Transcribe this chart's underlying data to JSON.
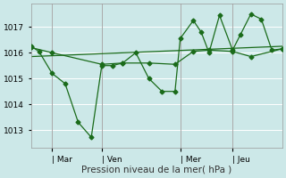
{
  "xlabel": "Pression niveau de la mer( hPa )",
  "bg_color": "#cce8e8",
  "grid_color": "#ffffff",
  "line_color": "#1a6b1a",
  "ylim": [
    1012.3,
    1017.9
  ],
  "yticks": [
    1013,
    1014,
    1015,
    1016,
    1017
  ],
  "xtick_labels": [
    "| Mar",
    "| Ven",
    "| Mer",
    "| Jeu"
  ],
  "xtick_positions": [
    8,
    27,
    57,
    77
  ],
  "total_points": 96,
  "xlim": [
    0,
    96
  ],
  "series_jagged_x": [
    0,
    3,
    8,
    13,
    18,
    23,
    27,
    31,
    35,
    40,
    45,
    50,
    55,
    57,
    62,
    65,
    68,
    72,
    77,
    80,
    84,
    88,
    92,
    96
  ],
  "series_jagged_y": [
    1016.25,
    1016.05,
    1015.2,
    1014.8,
    1013.3,
    1012.72,
    1015.5,
    1015.5,
    1015.6,
    1016.0,
    1015.0,
    1014.5,
    1014.5,
    1016.55,
    1017.25,
    1016.8,
    1016.0,
    1017.45,
    1016.1,
    1016.7,
    1017.5,
    1017.3,
    1016.1,
    1016.15
  ],
  "series_smooth_x": [
    0,
    8,
    27,
    35,
    45,
    55,
    62,
    68,
    77,
    84,
    96
  ],
  "series_smooth_y": [
    1016.2,
    1016.0,
    1015.55,
    1015.6,
    1015.6,
    1015.55,
    1016.05,
    1016.1,
    1016.05,
    1015.85,
    1016.15
  ],
  "trend_x": [
    0,
    96
  ],
  "trend_y": [
    1015.85,
    1016.25
  ]
}
